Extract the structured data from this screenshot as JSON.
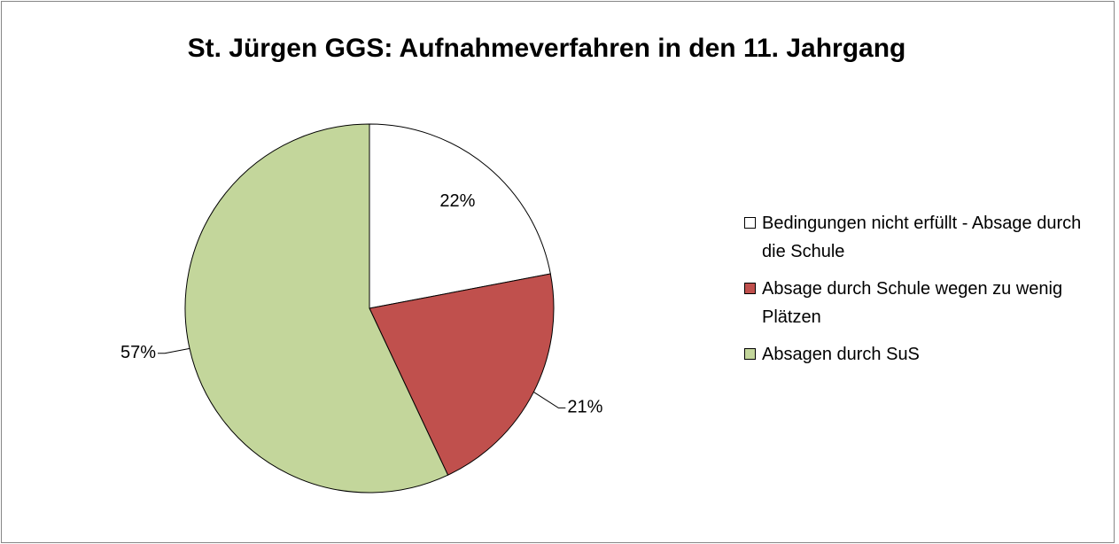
{
  "chart_data": {
    "type": "pie",
    "title": "St. Jürgen GGS: Aufnahmeverfahren in den 11. Jahrgang",
    "categories": [
      "Bedingungen nicht erfüllt - Absage durch die Schule",
      "Absage durch Schule wegen zu wenig Plätzen",
      "Absagen durch SuS"
    ],
    "values": [
      22,
      21,
      57
    ],
    "value_labels": [
      "22%",
      "21%",
      "57%"
    ],
    "colors": [
      "#ffffff",
      "#c0504d",
      "#c3d69b"
    ],
    "legend": "right"
  }
}
